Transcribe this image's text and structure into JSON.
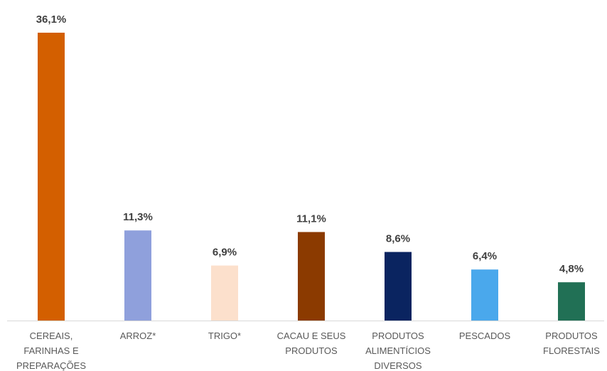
{
  "chart_data": {
    "type": "bar",
    "categories": [
      "CEREAIS, FARINHAS E PREPARAÇÕES",
      "ARROZ*",
      "TRIGO*",
      "CACAU E SEUS PRODUTOS",
      "PRODUTOS ALIMENTÍCIOS DIVERSOS",
      "PESCADOS",
      "PRODUTOS FLORESTAIS"
    ],
    "values": [
      36.1,
      11.3,
      6.9,
      11.1,
      8.6,
      6.4,
      4.8
    ],
    "value_labels": [
      "36,1%",
      "11,3%",
      "6,9%",
      "11,1%",
      "8,6%",
      "6,4%",
      "4,8%"
    ],
    "colors": [
      "#d35f00",
      "#8fa0dc",
      "#fce0cc",
      "#8b3a00",
      "#0a2460",
      "#4aa8ec",
      "#217055"
    ]
  }
}
